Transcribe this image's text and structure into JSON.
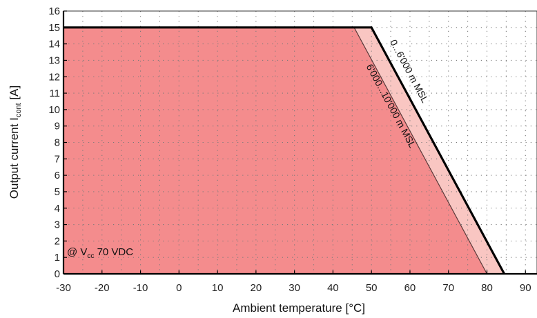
{
  "chart_data": {
    "type": "area",
    "xlabel": "Ambient temperature [°C]",
    "ylabel": {
      "main": "Output current I",
      "sub": "cont",
      "unit": " [A]"
    },
    "xlim": [
      -30,
      93
    ],
    "ylim": [
      0,
      16
    ],
    "x_ticks": [
      -30,
      -20,
      -10,
      0,
      10,
      20,
      30,
      40,
      50,
      60,
      70,
      80,
      90
    ],
    "y_ticks": [
      0,
      1,
      2,
      3,
      4,
      5,
      6,
      7,
      8,
      9,
      10,
      11,
      12,
      13,
      14,
      15,
      16
    ],
    "grid": true,
    "grid_style": "dotted",
    "annotation": {
      "prefix": "@ V",
      "sub": "cc",
      "suffix": " 70 VDC"
    },
    "series": [
      {
        "label": "0...6'000 m MSL",
        "x": [
          -30,
          50,
          84.5
        ],
        "y": [
          15,
          15,
          0
        ],
        "fill": "#f9c6c2",
        "line": "#000000"
      },
      {
        "label": "6'000...10'000 m MSL",
        "x": [
          -30,
          45.5,
          80
        ],
        "y": [
          15,
          15,
          0
        ],
        "fill": "#f48c8d",
        "line": "#5a3a3a"
      }
    ]
  },
  "colors": {
    "fill_low": "#f48c8d",
    "fill_high": "#f9c6c2",
    "line": "#000000",
    "grid": "#7a7a7a"
  }
}
